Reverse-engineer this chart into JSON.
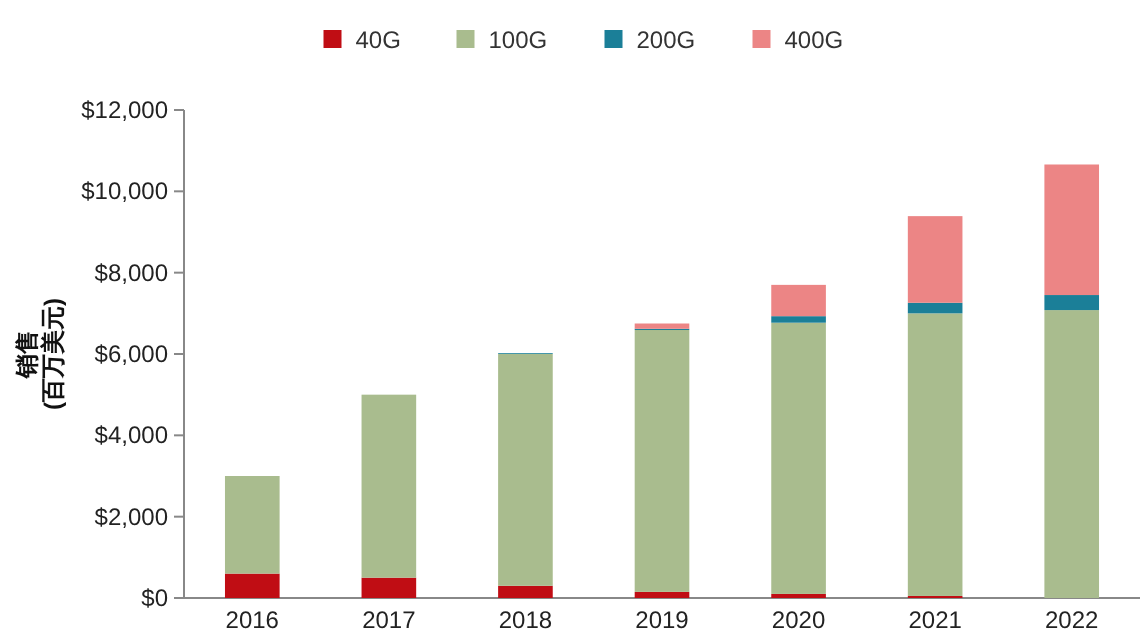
{
  "chart_data": {
    "type": "bar",
    "stacked": true,
    "ylabel": "销售\n(百万美元)",
    "categories": [
      "2016",
      "2017",
      "2018",
      "2019",
      "2020",
      "2021",
      "2022"
    ],
    "series": [
      {
        "name": "40G",
        "color": "#c00d14",
        "values": [
          600,
          500,
          300,
          150,
          100,
          50,
          0
        ]
      },
      {
        "name": "100G",
        "color": "#a9bc8e",
        "values": [
          2400,
          4500,
          5700,
          6440,
          6670,
          6950,
          7080
        ]
      },
      {
        "name": "200G",
        "color": "#1b7f98",
        "values": [
          0,
          0,
          20,
          30,
          160,
          260,
          370
        ]
      },
      {
        "name": "400G",
        "color": "#ec8585",
        "values": [
          0,
          0,
          0,
          130,
          770,
          2130,
          3210
        ]
      }
    ],
    "ylim": [
      0,
      12000
    ],
    "yticks": [
      {
        "value": 0,
        "label": "$0"
      },
      {
        "value": 2000,
        "label": "$2,000"
      },
      {
        "value": 4000,
        "label": "$4,000"
      },
      {
        "value": 6000,
        "label": "$6,000"
      },
      {
        "value": 8000,
        "label": "$8,000"
      },
      {
        "value": 10000,
        "label": "$10,000"
      },
      {
        "value": 12000,
        "label": "$12,000"
      }
    ],
    "grid": false,
    "legend": "top"
  }
}
